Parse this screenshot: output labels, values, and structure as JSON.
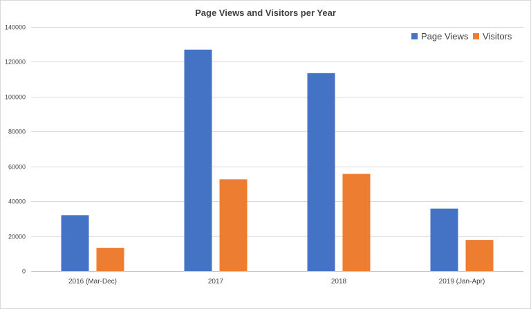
{
  "chart_data": {
    "type": "bar",
    "title": "Page Views and Visitors per Year",
    "xlabel": "",
    "ylabel": "",
    "categories": [
      "2016 (Mar-Dec)",
      "2017",
      "2018",
      "2019 (Jan-Apr)"
    ],
    "series": [
      {
        "name": "Page Views",
        "color": "#4472c4",
        "values": [
          32000,
          127000,
          113500,
          35800
        ]
      },
      {
        "name": "Visitors",
        "color": "#ed7d31",
        "values": [
          13200,
          52600,
          55700,
          17800
        ]
      }
    ],
    "ylim": [
      0,
      140000
    ],
    "yticks": [
      0,
      20000,
      40000,
      60000,
      80000,
      100000,
      120000,
      140000
    ],
    "ytick_labels": [
      "0",
      "20000",
      "40000",
      "60000",
      "80000",
      "100000",
      "120000",
      "140000"
    ],
    "grid": true,
    "legend_position": "top-right"
  }
}
